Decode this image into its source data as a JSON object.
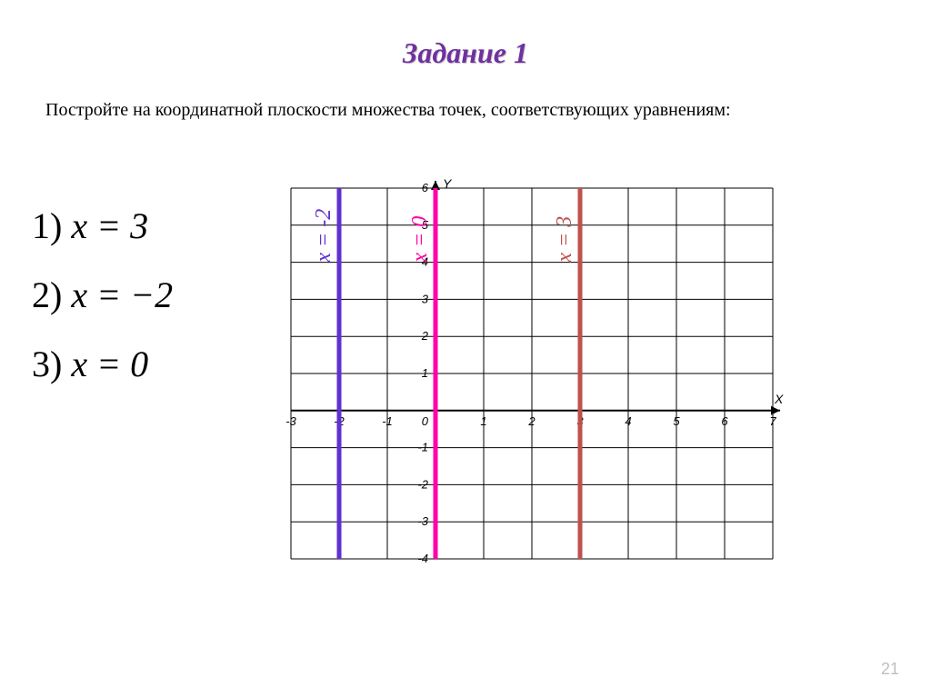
{
  "title": "Задание 1",
  "instruction": "Постройте на координатной плоскости множества точек, соответствующих уравнениям:",
  "equations": [
    {
      "n": "1)",
      "expr": "x = 3"
    },
    {
      "n": "2)",
      "expr": "x = −2"
    },
    {
      "n": "3)",
      "expr": "x = 0"
    }
  ],
  "chart": {
    "type": "line",
    "xrange": [
      -3,
      7
    ],
    "yrange": [
      -4,
      6
    ],
    "xticks": [
      -3,
      -2,
      -1,
      0,
      1,
      2,
      3,
      4,
      5,
      6,
      7
    ],
    "yticks": [
      -4,
      -3,
      -2,
      -1,
      0,
      1,
      2,
      3,
      4,
      5,
      6
    ],
    "origin_label": "0",
    "x_axis_label": "X",
    "y_axis_label": "Y",
    "grid_color": "#000000",
    "axis_color": "#000000",
    "background": "#ffffff",
    "lines": [
      {
        "x": -2,
        "color": "#6030d0",
        "width": 5,
        "label": "x = -2",
        "ystart": -4,
        "yend": 6
      },
      {
        "x": 0,
        "color": "#ff00aa",
        "width": 5,
        "label": "x = 0",
        "ystart": -4,
        "yend": 6
      },
      {
        "x": 3,
        "color": "#c0504d",
        "width": 5,
        "label": "x = 3",
        "ystart": -4,
        "yend": 6
      }
    ]
  },
  "page_number": "21"
}
